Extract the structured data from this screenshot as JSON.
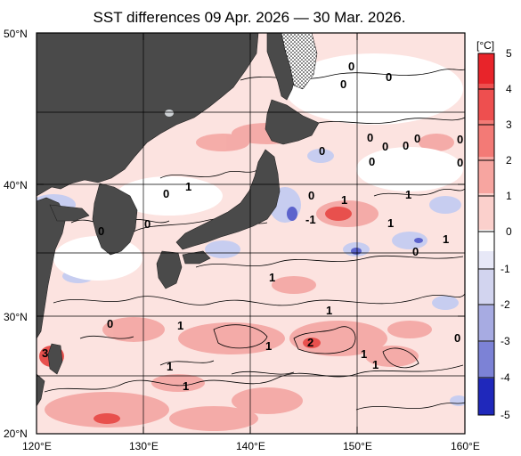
{
  "title": "SST differences 09 Apr. 2026 — 30 Mar. 2026.",
  "lat_labels": [
    "50°N",
    "40°N",
    "30°N",
    "20°N"
  ],
  "lon_labels": [
    "120°E",
    "130°E",
    "140°E",
    "150°E",
    "160°E"
  ],
  "colorbar": {
    "unit": "[°C]",
    "ticks": [
      "5",
      "4",
      "3",
      "2",
      "1",
      "0",
      "-1",
      "-2",
      "-3",
      "-4",
      "-5"
    ],
    "colors": [
      "#e8242a",
      "#ee4f4f",
      "#f37a76",
      "#f7a5a0",
      "#fbd0cc",
      "#ffffff",
      "#ffffff",
      "#d2d4ef",
      "#a7abe2",
      "#7c82d6",
      "#4a52c8",
      "#1f28bb"
    ]
  },
  "contour_labels": [
    "0",
    "0",
    "0",
    "0",
    "0",
    "0",
    "0",
    "0",
    "0",
    "0",
    "0",
    "0",
    "0",
    "1",
    "1",
    "-1",
    "1",
    "1",
    "1",
    "1",
    "1",
    "1",
    "1",
    "1",
    "1",
    "2",
    "1",
    "1",
    "3",
    "0",
    "0",
    "0",
    "0",
    "0"
  ],
  "colors": {
    "land": "#4a4a4a",
    "ocean_base": "#fce3e0",
    "warm": "#f4a6a3",
    "warmer": "#ef8a86",
    "cool": "#c7cdf0",
    "coolest": "#8892db"
  }
}
